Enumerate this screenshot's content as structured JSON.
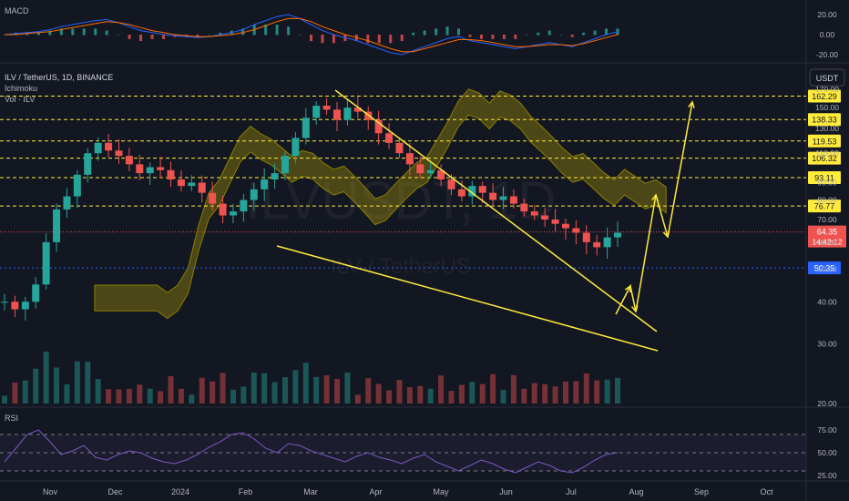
{
  "panes": {
    "macd_label": "MACD",
    "rsi_label": "RSI",
    "main_title": "ILV / TetherUS, 1D, BINANCE",
    "indicator_ichimoku": "Ichimoku",
    "indicator_vol": "Vol · ILV",
    "currency_button": "USDT",
    "watermark": "ILVUSDT, 1D",
    "watermark_sub": "ILV / TetherUS"
  },
  "colors": {
    "background": "#131722",
    "up": "#26a69a",
    "down": "#ef5350",
    "level_line": "#ffeb3b",
    "trendline": "#ffeb3b",
    "cloud": "#b5a100",
    "rsi_line": "#7e57c2",
    "macd_line": "#2962ff",
    "signal_line": "#ff6d00",
    "grid": "#2a2e39",
    "text": "#b2b5be",
    "current_price_bg": "#ef5350",
    "support_bg": "#2962ff"
  },
  "time_axis": [
    "Nov",
    "Dec",
    "2024",
    "Feb",
    "Mar",
    "Apr",
    "May",
    "Jun",
    "Jul",
    "Aug",
    "Sep",
    "Oct"
  ],
  "chart_data": [
    {
      "type": "candlestick",
      "title": "ILV / TetherUS, 1D, BINANCE",
      "scale": "log",
      "price_ticks": [
        "170.00",
        "150.00",
        "130.00",
        "110.00",
        "90.00",
        "80.00",
        "70.00",
        "60.00",
        "50.00",
        "40.00",
        "30.00",
        "20.00"
      ],
      "level_labels": [
        {
          "label": "162.29",
          "value": 162.29
        },
        {
          "label": "138.33",
          "value": 138.33
        },
        {
          "label": "119.53",
          "value": 119.53
        },
        {
          "label": "106.32",
          "value": 106.32
        },
        {
          "label": "93.11",
          "value": 93.11
        },
        {
          "label": "76.77",
          "value": 76.77
        }
      ],
      "current_price": {
        "label": "64.35",
        "countdown": "14:42:12",
        "value": 64.35
      },
      "support": {
        "label": "50.35",
        "value": 50.35
      },
      "closes": [
        40,
        38,
        40,
        45,
        60,
        75,
        82,
        95,
        110,
        118,
        112,
        108,
        102,
        96,
        100,
        98,
        92,
        88,
        90,
        84,
        78,
        72,
        74,
        80,
        86,
        92,
        96,
        108,
        122,
        140,
        152,
        148,
        138,
        150,
        146,
        138,
        126,
        118,
        110,
        102,
        96,
        98,
        92,
        86,
        82,
        88,
        84,
        80,
        82,
        78,
        74,
        72,
        70,
        68,
        66,
        64,
        60,
        58,
        62,
        64
      ],
      "projection_path": [
        [
          76,
          60
        ],
        [
          70,
          65
        ],
        [
          76,
          125
        ],
        [
          119,
          135
        ],
        [
          97,
          140
        ],
        [
          162,
          150
        ]
      ]
    },
    {
      "type": "line",
      "title": "MACD",
      "y_ticks": [
        "20.00",
        "0.00",
        "-20.00"
      ],
      "macd": [
        0,
        1,
        2,
        3,
        5,
        8,
        10,
        12,
        14,
        15,
        12,
        8,
        4,
        2,
        0,
        -1,
        -2,
        -3,
        -2,
        0,
        2,
        5,
        10,
        14,
        18,
        20,
        16,
        10,
        4,
        0,
        -3,
        -6,
        -10,
        -14,
        -18,
        -20,
        -16,
        -12,
        -8,
        -4,
        -2,
        -6,
        -8,
        -10,
        -12,
        -14,
        -12,
        -10,
        -8,
        -10,
        -12,
        -8,
        -4,
        0,
        3
      ],
      "signal": [
        0,
        0,
        1,
        2,
        3,
        5,
        7,
        9,
        11,
        13,
        12,
        10,
        7,
        4,
        2,
        0,
        -1,
        -2,
        -2,
        -1,
        0,
        2,
        5,
        9,
        13,
        16,
        16,
        13,
        8,
        4,
        0,
        -3,
        -6,
        -10,
        -14,
        -17,
        -17,
        -14,
        -11,
        -8,
        -5,
        -5,
        -6,
        -8,
        -10,
        -12,
        -12,
        -11,
        -10,
        -10,
        -11,
        -9,
        -6,
        -3,
        0
      ]
    },
    {
      "type": "line",
      "title": "RSI",
      "y_ticks": [
        "75.00",
        "50.00",
        "25.00"
      ],
      "values": [
        40,
        55,
        70,
        75,
        62,
        48,
        52,
        58,
        45,
        42,
        48,
        52,
        50,
        44,
        40,
        38,
        42,
        48,
        56,
        62,
        70,
        72,
        65,
        55,
        50,
        60,
        58,
        52,
        48,
        44,
        40,
        46,
        50,
        45,
        42,
        38,
        44,
        48,
        40,
        35,
        30,
        36,
        42,
        38,
        32,
        28,
        34,
        40,
        36,
        30,
        28,
        34,
        42,
        48,
        50
      ]
    }
  ]
}
